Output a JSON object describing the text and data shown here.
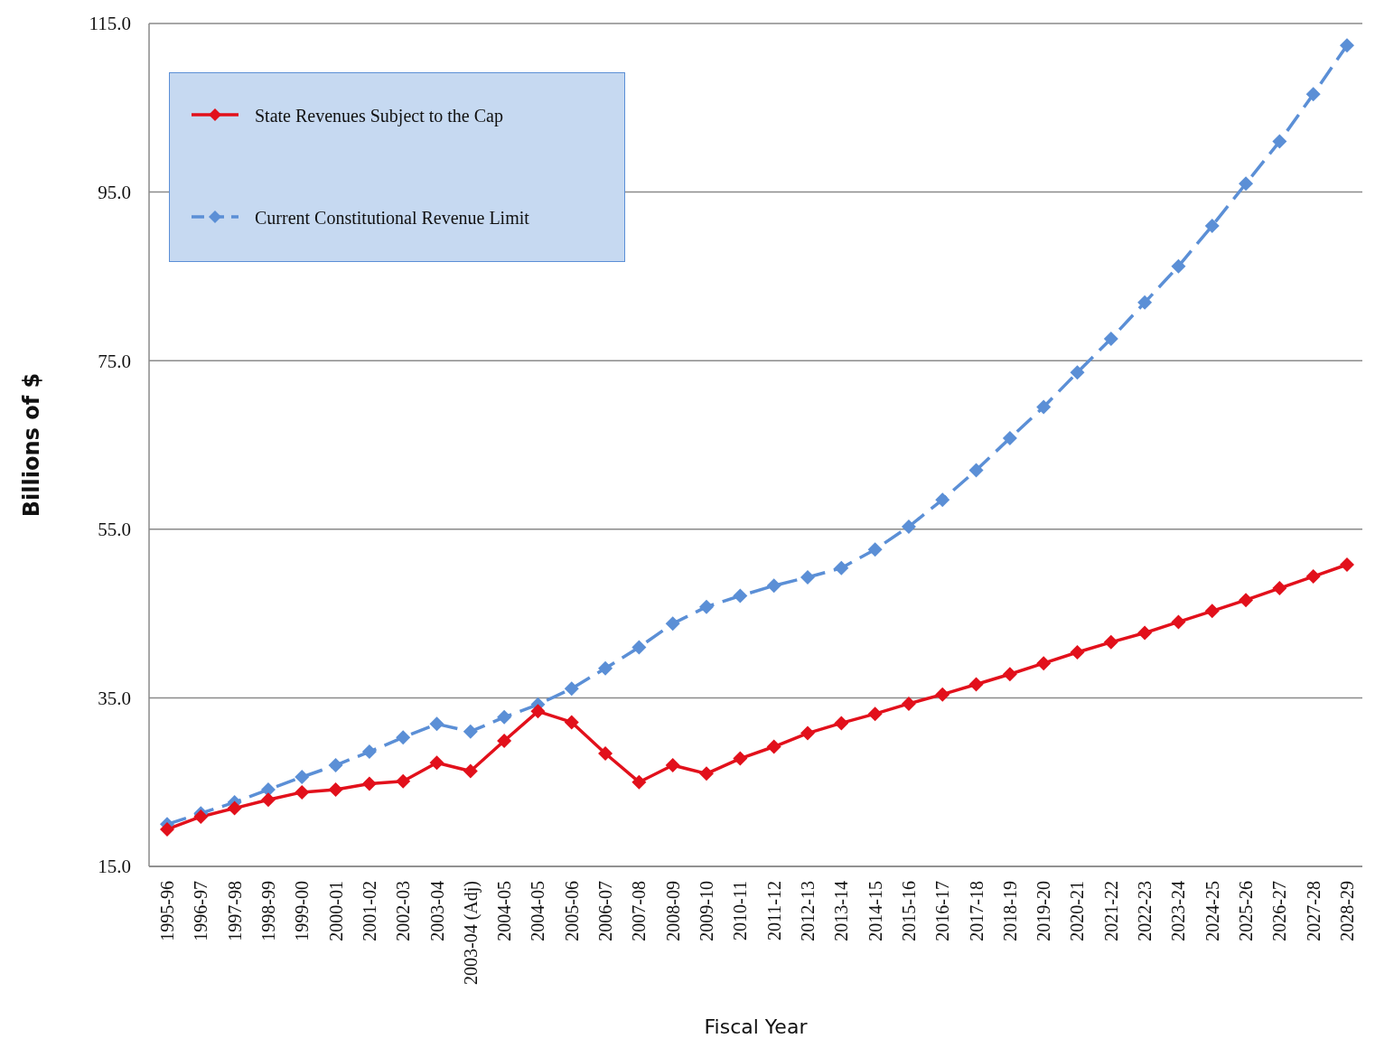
{
  "chart_data": {
    "type": "line",
    "xlabel": "Fiscal Year",
    "ylabel": "Billions of $",
    "categories": [
      "1995-96",
      "1996-97",
      "1997-98",
      "1998-99",
      "1999-00",
      "2000-01",
      "2001-02",
      "2002-03",
      "2003-04",
      "2003-04 (Adj)",
      "2004-05",
      "2004-05",
      "2005-06",
      "2006-07",
      "2007-08",
      "2008-09",
      "2009-10",
      "2010-11",
      "2011-12",
      "2012-13",
      "2013-14",
      "2014-15",
      "2015-16",
      "2016-17",
      "2017-18",
      "2018-19",
      "2019-20",
      "2020-21",
      "2021-22",
      "2022-23",
      "2023-24",
      "2024-25",
      "2025-26",
      "2026-27",
      "2027-28",
      "2028-29"
    ],
    "series": [
      {
        "name": "State Revenues Subject to the Cap",
        "color": "#e2101b",
        "line_style": "solid",
        "values": [
          19.4,
          20.9,
          21.9,
          22.9,
          23.8,
          24.1,
          24.8,
          25.1,
          27.3,
          26.3,
          29.9,
          33.4,
          32.1,
          28.4,
          25.0,
          27.0,
          26.0,
          27.8,
          29.2,
          30.8,
          32.0,
          33.1,
          34.3,
          35.4,
          36.6,
          37.8,
          39.1,
          40.4,
          41.6,
          42.7,
          44.0,
          45.3,
          46.6,
          48.0,
          49.4,
          50.8
        ]
      },
      {
        "name": "Current Constitutional Revenue Limit",
        "color": "#5b8fd6",
        "line_style": "dashed",
        "values": [
          20.0,
          21.3,
          22.6,
          24.1,
          25.6,
          27.0,
          28.6,
          30.3,
          31.9,
          31.0,
          32.7,
          34.2,
          36.1,
          38.5,
          41.0,
          43.8,
          45.8,
          47.1,
          48.3,
          49.3,
          50.4,
          52.6,
          55.3,
          58.5,
          62.0,
          65.8,
          69.5,
          73.6,
          77.6,
          81.9,
          86.2,
          91.0,
          96.0,
          101.0,
          106.6,
          112.4
        ]
      }
    ],
    "ylim": [
      15,
      115
    ],
    "yticks": [
      {
        "value": 15,
        "label": "15.0"
      },
      {
        "value": 35,
        "label": "35.0"
      },
      {
        "value": 55,
        "label": "55.0"
      },
      {
        "value": 75,
        "label": "75.0"
      },
      {
        "value": 95,
        "label": "95.0"
      },
      {
        "value": 115,
        "label": "115.0"
      }
    ],
    "grid": "y",
    "legend": "top left",
    "marker": "diamond"
  }
}
